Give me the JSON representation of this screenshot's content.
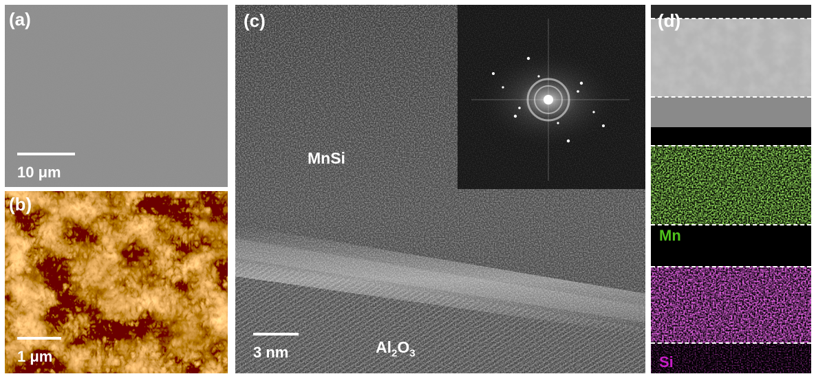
{
  "panels": {
    "a": {
      "label": "(a)",
      "scale_text": "10 μm",
      "background": "#8e8e8e"
    },
    "b": {
      "label": "(b)",
      "scale_text": "1 μm",
      "colors": {
        "dark": "#5a2204",
        "mid": "#c0651a",
        "light": "#f7c36a",
        "highlight": "#fff0c4"
      }
    },
    "c": {
      "label": "(c)",
      "scale_text": "3 nm",
      "layer_top": "MnSi",
      "layer_bottom_main": "Al",
      "layer_bottom_sub1": "2",
      "layer_bottom_mid": "O",
      "layer_bottom_sub2": "3"
    },
    "d": {
      "label": "(d)",
      "mn_label": "Mn",
      "si_label": "Si",
      "mn_color": "#4fc21c",
      "si_color": "#c81ec8"
    }
  }
}
